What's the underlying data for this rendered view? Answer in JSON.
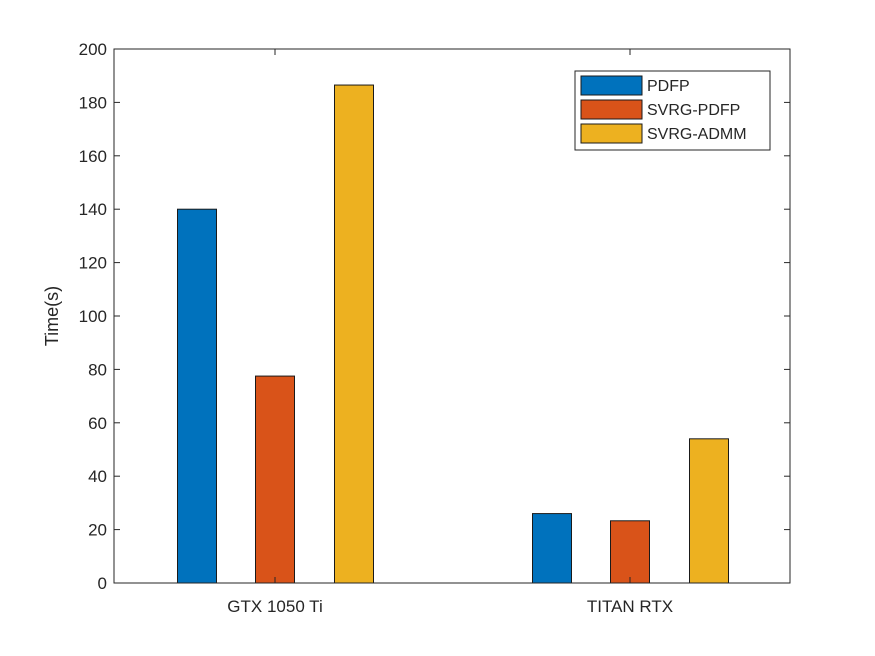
{
  "chart_data": {
    "type": "bar",
    "title": "",
    "xlabel": "",
    "ylabel": "Time(s)",
    "categories": [
      "GTX 1050 Ti",
      "TITAN RTX"
    ],
    "series": [
      {
        "name": "PDFP",
        "values": [
          140,
          26
        ],
        "color": "#0072BD"
      },
      {
        "name": "SVRG-PDFP",
        "values": [
          77.5,
          23.3
        ],
        "color": "#D95319"
      },
      {
        "name": "SVRG-ADMM",
        "values": [
          186.5,
          54
        ],
        "color": "#EDB120"
      }
    ],
    "ylim": [
      0,
      200
    ],
    "yticks": [
      0,
      20,
      40,
      60,
      80,
      100,
      120,
      140,
      160,
      180,
      200
    ],
    "grid": false,
    "legend_position": "top-right"
  }
}
